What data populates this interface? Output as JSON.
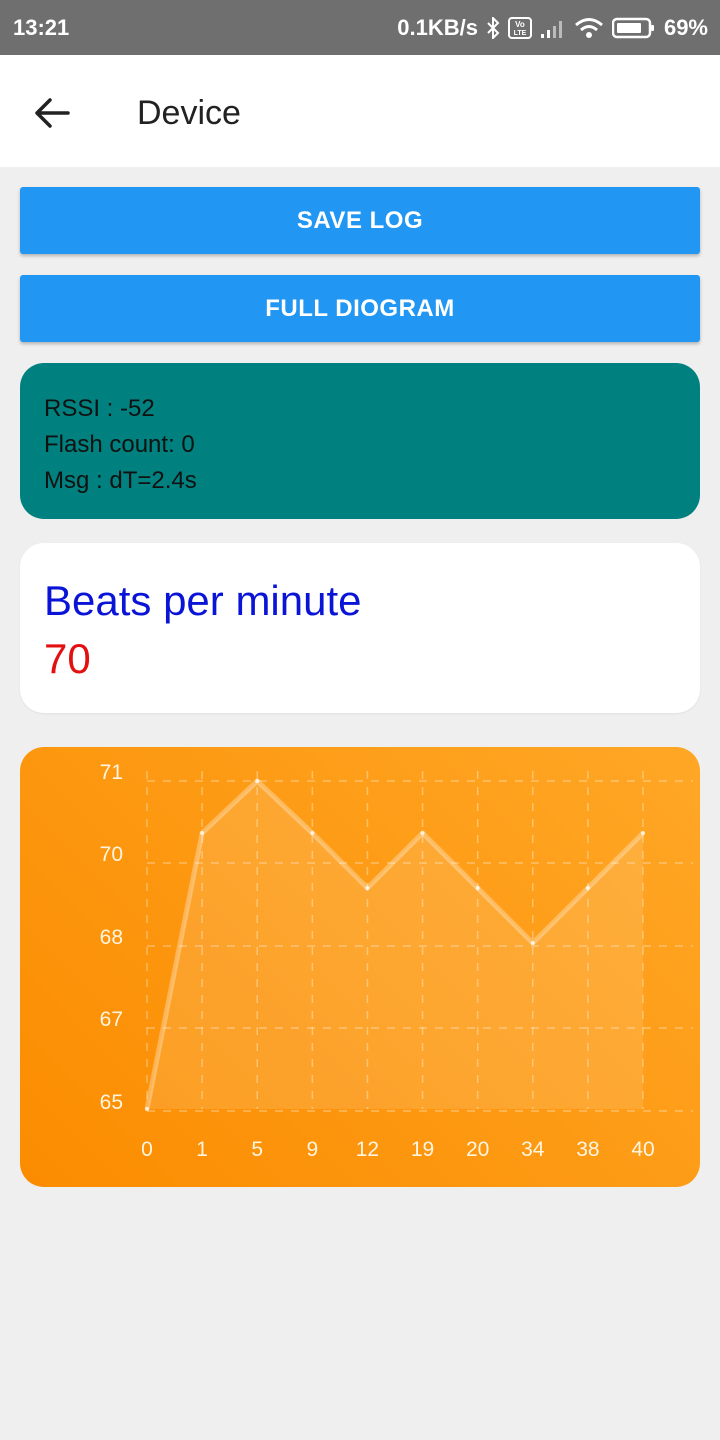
{
  "status_bar": {
    "time": "13:21",
    "speed": "0.1KB/s",
    "volte": "Vo LTE",
    "battery": "69%"
  },
  "app_bar": {
    "back_icon": "arrow-left-icon",
    "title": "Device"
  },
  "buttons": {
    "save_log": "SAVE LOG",
    "full_diogram": "FULL DIOGRAM"
  },
  "info": {
    "rssi": "RSSI : -52",
    "flash_count": "Flash count: 0",
    "msg": "Msg : dT=2.4s"
  },
  "bpm": {
    "label": "Beats per minute",
    "value": "70"
  },
  "colors": {
    "button": "#2196f3",
    "info_card": "#00807e",
    "bpm_label": "#0a14d6",
    "bpm_value": "#e31010",
    "chart_start": "#fb8c00",
    "chart_end": "#ffa726"
  },
  "chart_data": {
    "type": "area",
    "title": "",
    "xlabel": "",
    "ylabel": "",
    "categories": [
      "0",
      "1",
      "5",
      "9",
      "12",
      "19",
      "20",
      "34",
      "38",
      "40"
    ],
    "values": [
      65,
      70,
      71,
      70,
      69,
      70,
      69,
      68,
      69,
      70
    ],
    "y_ticks": [
      "71",
      "70",
      "68",
      "67",
      "65"
    ],
    "ylim": [
      65,
      71
    ],
    "grid": true
  }
}
